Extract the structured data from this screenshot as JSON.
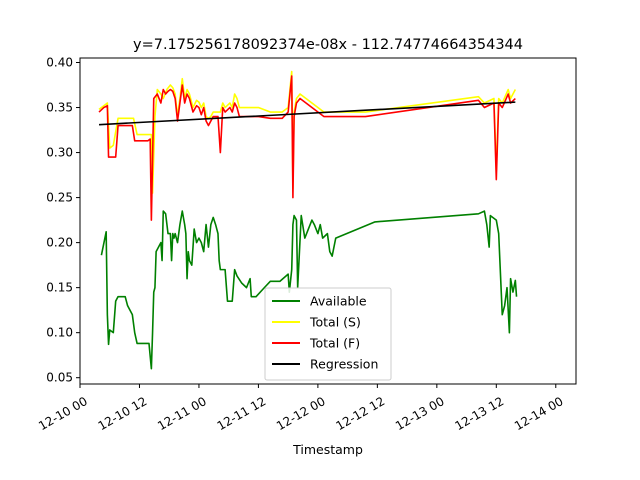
{
  "chart_data": {
    "type": "line",
    "title": "y=7.175256178092374e-08x - 112.74774664354344",
    "xlabel": "Timestamp",
    "ylabel": "",
    "xlim": [
      0.0,
      4.17
    ],
    "ylim": [
      0.043,
      0.405
    ],
    "x_ticks": [
      {
        "x": 0.0,
        "label": "12-10 00"
      },
      {
        "x": 0.5,
        "label": "12-10 12"
      },
      {
        "x": 1.0,
        "label": "12-11 00"
      },
      {
        "x": 1.5,
        "label": "12-11 12"
      },
      {
        "x": 2.0,
        "label": "12-12 00"
      },
      {
        "x": 2.5,
        "label": "12-12 12"
      },
      {
        "x": 3.0,
        "label": "12-13 00"
      },
      {
        "x": 3.5,
        "label": "12-13 12"
      },
      {
        "x": 4.0,
        "label": "12-14 00"
      }
    ],
    "y_ticks": [
      {
        "y": 0.05,
        "label": "0.05"
      },
      {
        "y": 0.1,
        "label": "0.10"
      },
      {
        "y": 0.15,
        "label": "0.15"
      },
      {
        "y": 0.2,
        "label": "0.20"
      },
      {
        "y": 0.25,
        "label": "0.25"
      },
      {
        "y": 0.3,
        "label": "0.30"
      },
      {
        "y": 0.35,
        "label": "0.35"
      },
      {
        "y": 0.4,
        "label": "0.40"
      }
    ],
    "legend_position": "lower-center",
    "series": [
      {
        "name": "Available",
        "color": "#008000",
        "points": [
          [
            0.18,
            0.186
          ],
          [
            0.22,
            0.212
          ],
          [
            0.23,
            0.12
          ],
          [
            0.24,
            0.087
          ],
          [
            0.25,
            0.103
          ],
          [
            0.28,
            0.1
          ],
          [
            0.3,
            0.135
          ],
          [
            0.32,
            0.14
          ],
          [
            0.38,
            0.14
          ],
          [
            0.4,
            0.13
          ],
          [
            0.44,
            0.12
          ],
          [
            0.46,
            0.1
          ],
          [
            0.48,
            0.088
          ],
          [
            0.58,
            0.088
          ],
          [
            0.6,
            0.06
          ],
          [
            0.61,
            0.1
          ],
          [
            0.62,
            0.145
          ],
          [
            0.63,
            0.15
          ],
          [
            0.64,
            0.19
          ],
          [
            0.68,
            0.2
          ],
          [
            0.69,
            0.18
          ],
          [
            0.7,
            0.235
          ],
          [
            0.72,
            0.232
          ],
          [
            0.74,
            0.21
          ],
          [
            0.76,
            0.21
          ],
          [
            0.77,
            0.18
          ],
          [
            0.78,
            0.21
          ],
          [
            0.79,
            0.205
          ],
          [
            0.8,
            0.21
          ],
          [
            0.82,
            0.2
          ],
          [
            0.84,
            0.22
          ],
          [
            0.86,
            0.235
          ],
          [
            0.88,
            0.22
          ],
          [
            0.89,
            0.21
          ],
          [
            0.9,
            0.16
          ],
          [
            0.91,
            0.19
          ],
          [
            0.92,
            0.18
          ],
          [
            0.94,
            0.175
          ],
          [
            0.96,
            0.215
          ],
          [
            0.98,
            0.2
          ],
          [
            1.0,
            0.205
          ],
          [
            1.02,
            0.2
          ],
          [
            1.04,
            0.19
          ],
          [
            1.06,
            0.22
          ],
          [
            1.08,
            0.195
          ],
          [
            1.1,
            0.22
          ],
          [
            1.12,
            0.228
          ],
          [
            1.14,
            0.22
          ],
          [
            1.16,
            0.21
          ],
          [
            1.17,
            0.18
          ],
          [
            1.18,
            0.17
          ],
          [
            1.22,
            0.17
          ],
          [
            1.24,
            0.135
          ],
          [
            1.28,
            0.135
          ],
          [
            1.3,
            0.17
          ],
          [
            1.32,
            0.163
          ],
          [
            1.36,
            0.155
          ],
          [
            1.4,
            0.15
          ],
          [
            1.43,
            0.16
          ],
          [
            1.44,
            0.14
          ],
          [
            1.48,
            0.14
          ],
          [
            1.55,
            0.15
          ],
          [
            1.6,
            0.157
          ],
          [
            1.68,
            0.157
          ],
          [
            1.75,
            0.165
          ],
          [
            1.76,
            0.145
          ],
          [
            1.78,
            0.17
          ],
          [
            1.79,
            0.22
          ],
          [
            1.8,
            0.23
          ],
          [
            1.82,
            0.225
          ],
          [
            1.83,
            0.15
          ],
          [
            1.86,
            0.23
          ],
          [
            1.89,
            0.205
          ],
          [
            1.92,
            0.215
          ],
          [
            1.95,
            0.225
          ],
          [
            1.97,
            0.22
          ],
          [
            2.0,
            0.21
          ],
          [
            2.02,
            0.22
          ],
          [
            2.04,
            0.205
          ],
          [
            2.08,
            0.21
          ],
          [
            2.1,
            0.19
          ],
          [
            2.12,
            0.185
          ],
          [
            2.15,
            0.205
          ],
          [
            2.48,
            0.223
          ],
          [
            3.35,
            0.232
          ],
          [
            3.4,
            0.235
          ],
          [
            3.42,
            0.22
          ],
          [
            3.44,
            0.195
          ],
          [
            3.45,
            0.23
          ],
          [
            3.5,
            0.225
          ],
          [
            3.52,
            0.21
          ],
          [
            3.55,
            0.12
          ],
          [
            3.57,
            0.13
          ],
          [
            3.59,
            0.15
          ],
          [
            3.61,
            0.1
          ],
          [
            3.62,
            0.16
          ],
          [
            3.64,
            0.145
          ],
          [
            3.66,
            0.158
          ],
          [
            3.67,
            0.14
          ]
        ]
      },
      {
        "name": "Total (S)",
        "color": "#ffff00",
        "points": [
          [
            0.16,
            0.348
          ],
          [
            0.2,
            0.352
          ],
          [
            0.23,
            0.355
          ],
          [
            0.25,
            0.305
          ],
          [
            0.28,
            0.308
          ],
          [
            0.32,
            0.338
          ],
          [
            0.45,
            0.338
          ],
          [
            0.48,
            0.32
          ],
          [
            0.55,
            0.32
          ],
          [
            0.6,
            0.32
          ],
          [
            0.61,
            0.255
          ],
          [
            0.63,
            0.34
          ],
          [
            0.65,
            0.37
          ],
          [
            0.68,
            0.365
          ],
          [
            0.7,
            0.36
          ],
          [
            0.73,
            0.37
          ],
          [
            0.76,
            0.375
          ],
          [
            0.78,
            0.372
          ],
          [
            0.8,
            0.365
          ],
          [
            0.82,
            0.34
          ],
          [
            0.84,
            0.36
          ],
          [
            0.86,
            0.382
          ],
          [
            0.88,
            0.36
          ],
          [
            0.9,
            0.37
          ],
          [
            0.92,
            0.365
          ],
          [
            0.95,
            0.35
          ],
          [
            0.98,
            0.358
          ],
          [
            1.0,
            0.356
          ],
          [
            1.02,
            0.35
          ],
          [
            1.04,
            0.355
          ],
          [
            1.06,
            0.34
          ],
          [
            1.08,
            0.338
          ],
          [
            1.1,
            0.34
          ],
          [
            1.12,
            0.345
          ],
          [
            1.16,
            0.345
          ],
          [
            1.18,
            0.345
          ],
          [
            1.2,
            0.355
          ],
          [
            1.22,
            0.35
          ],
          [
            1.26,
            0.355
          ],
          [
            1.28,
            0.35
          ],
          [
            1.3,
            0.365
          ],
          [
            1.32,
            0.36
          ],
          [
            1.34,
            0.35
          ],
          [
            1.4,
            0.35
          ],
          [
            1.5,
            0.35
          ],
          [
            1.6,
            0.345
          ],
          [
            1.7,
            0.345
          ],
          [
            1.75,
            0.35
          ],
          [
            1.78,
            0.39
          ],
          [
            1.79,
            0.26
          ],
          [
            1.8,
            0.345
          ],
          [
            1.82,
            0.36
          ],
          [
            1.85,
            0.365
          ],
          [
            1.9,
            0.36
          ],
          [
            1.95,
            0.355
          ],
          [
            2.0,
            0.35
          ],
          [
            2.05,
            0.345
          ],
          [
            2.4,
            0.345
          ],
          [
            3.35,
            0.362
          ],
          [
            3.4,
            0.355
          ],
          [
            3.48,
            0.36
          ],
          [
            3.5,
            0.28
          ],
          [
            3.52,
            0.36
          ],
          [
            3.55,
            0.355
          ],
          [
            3.6,
            0.37
          ],
          [
            3.62,
            0.36
          ],
          [
            3.66,
            0.37
          ]
        ]
      },
      {
        "name": "Total (F)",
        "color": "#ff0000",
        "points": [
          [
            0.16,
            0.345
          ],
          [
            0.2,
            0.35
          ],
          [
            0.23,
            0.352
          ],
          [
            0.24,
            0.295
          ],
          [
            0.3,
            0.295
          ],
          [
            0.32,
            0.33
          ],
          [
            0.44,
            0.33
          ],
          [
            0.46,
            0.313
          ],
          [
            0.55,
            0.313
          ],
          [
            0.57,
            0.313
          ],
          [
            0.59,
            0.315
          ],
          [
            0.6,
            0.225
          ],
          [
            0.62,
            0.36
          ],
          [
            0.65,
            0.365
          ],
          [
            0.68,
            0.355
          ],
          [
            0.7,
            0.37
          ],
          [
            0.72,
            0.365
          ],
          [
            0.74,
            0.368
          ],
          [
            0.76,
            0.37
          ],
          [
            0.78,
            0.368
          ],
          [
            0.8,
            0.36
          ],
          [
            0.82,
            0.335
          ],
          [
            0.84,
            0.355
          ],
          [
            0.86,
            0.375
          ],
          [
            0.88,
            0.355
          ],
          [
            0.9,
            0.365
          ],
          [
            0.92,
            0.36
          ],
          [
            0.95,
            0.345
          ],
          [
            0.98,
            0.352
          ],
          [
            1.0,
            0.35
          ],
          [
            1.02,
            0.342
          ],
          [
            1.04,
            0.35
          ],
          [
            1.06,
            0.335
          ],
          [
            1.08,
            0.33
          ],
          [
            1.1,
            0.335
          ],
          [
            1.12,
            0.34
          ],
          [
            1.16,
            0.34
          ],
          [
            1.18,
            0.3
          ],
          [
            1.2,
            0.35
          ],
          [
            1.22,
            0.345
          ],
          [
            1.26,
            0.35
          ],
          [
            1.28,
            0.345
          ],
          [
            1.3,
            0.355
          ],
          [
            1.32,
            0.35
          ],
          [
            1.34,
            0.34
          ],
          [
            1.4,
            0.34
          ],
          [
            1.5,
            0.34
          ],
          [
            1.6,
            0.338
          ],
          [
            1.7,
            0.338
          ],
          [
            1.75,
            0.345
          ],
          [
            1.78,
            0.385
          ],
          [
            1.79,
            0.25
          ],
          [
            1.8,
            0.34
          ],
          [
            1.82,
            0.355
          ],
          [
            1.85,
            0.36
          ],
          [
            1.9,
            0.355
          ],
          [
            1.95,
            0.35
          ],
          [
            2.0,
            0.345
          ],
          [
            2.05,
            0.34
          ],
          [
            2.4,
            0.34
          ],
          [
            3.35,
            0.358
          ],
          [
            3.4,
            0.35
          ],
          [
            3.48,
            0.355
          ],
          [
            3.5,
            0.27
          ],
          [
            3.52,
            0.355
          ],
          [
            3.55,
            0.35
          ],
          [
            3.6,
            0.365
          ],
          [
            3.62,
            0.355
          ],
          [
            3.66,
            0.36
          ]
        ]
      },
      {
        "name": "Regression",
        "color": "#000000",
        "points": [
          [
            0.16,
            0.331
          ],
          [
            3.66,
            0.356
          ]
        ]
      }
    ]
  }
}
